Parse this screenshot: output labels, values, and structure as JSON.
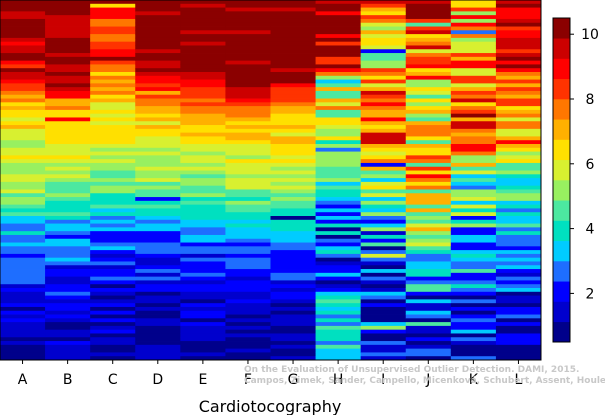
{
  "chart_data": {
    "type": "heatmap",
    "xlabel": "Cardiotocography",
    "categories": [
      "A",
      "B",
      "C",
      "D",
      "E",
      "F",
      "G",
      "H",
      "I",
      "J",
      "K",
      "L"
    ],
    "colorbar": {
      "min": 0.5,
      "max": 10.5,
      "ticks": [
        2,
        4,
        6,
        8,
        10
      ]
    },
    "colors": [
      "#00008B",
      "#0000CD",
      "#0000FF",
      "#1E6EFF",
      "#00CCFF",
      "#00E0C0",
      "#4CE8A0",
      "#98F060",
      "#D8F030",
      "#FFE000",
      "#FFB000",
      "#FF7700",
      "#FF3300",
      "#FF0000",
      "#CC0000",
      "#8B0000"
    ],
    "columns": [
      {
        "name": "A",
        "profile": [
          [
            0.0,
            10.3
          ],
          [
            0.2,
            9.8
          ],
          [
            0.27,
            7.2
          ],
          [
            0.4,
            6.0
          ],
          [
            0.55,
            5.2
          ],
          [
            0.62,
            3.3
          ],
          [
            0.75,
            2.6
          ],
          [
            0.85,
            1.7
          ],
          [
            1.0,
            0.9
          ]
        ],
        "noise": 0.7,
        "seed": 11
      },
      {
        "name": "B",
        "profile": [
          [
            0.0,
            10.3
          ],
          [
            0.25,
            9.8
          ],
          [
            0.28,
            7.5
          ],
          [
            0.4,
            6.2
          ],
          [
            0.55,
            5.0
          ],
          [
            0.62,
            3.2
          ],
          [
            0.75,
            2.3
          ],
          [
            0.88,
            1.5
          ],
          [
            1.0,
            0.9
          ]
        ],
        "noise": 0.7,
        "seed": 23
      },
      {
        "name": "C",
        "profile": [
          [
            0.0,
            10.3
          ],
          [
            0.05,
            8.0
          ],
          [
            0.2,
            8.0
          ],
          [
            0.28,
            6.3
          ],
          [
            0.4,
            5.6
          ],
          [
            0.55,
            4.4
          ],
          [
            0.62,
            2.8
          ],
          [
            0.75,
            2.0
          ],
          [
            0.9,
            1.3
          ],
          [
            1.0,
            0.9
          ]
        ],
        "noise": 0.7,
        "seed": 37
      },
      {
        "name": "D",
        "profile": [
          [
            0.0,
            10.3
          ],
          [
            0.15,
            10.3
          ],
          [
            0.25,
            8.2
          ],
          [
            0.32,
            6.7
          ],
          [
            0.45,
            5.6
          ],
          [
            0.55,
            4.7
          ],
          [
            0.62,
            3.0
          ],
          [
            0.75,
            2.0
          ],
          [
            0.85,
            1.4
          ],
          [
            1.0,
            0.9
          ]
        ],
        "noise": 0.6,
        "seed": 41
      },
      {
        "name": "E",
        "profile": [
          [
            0.0,
            10.3
          ],
          [
            0.18,
            10.3
          ],
          [
            0.26,
            8.6
          ],
          [
            0.34,
            6.8
          ],
          [
            0.45,
            5.6
          ],
          [
            0.55,
            4.6
          ],
          [
            0.62,
            3.2
          ],
          [
            0.72,
            2.2
          ],
          [
            0.85,
            1.5
          ],
          [
            1.0,
            0.9
          ]
        ],
        "noise": 0.6,
        "seed": 53
      },
      {
        "name": "F",
        "profile": [
          [
            0.0,
            10.3
          ],
          [
            0.24,
            10.3
          ],
          [
            0.28,
            8.4
          ],
          [
            0.34,
            7.0
          ],
          [
            0.45,
            5.8
          ],
          [
            0.55,
            4.8
          ],
          [
            0.62,
            3.4
          ],
          [
            0.72,
            2.4
          ],
          [
            0.85,
            1.4
          ],
          [
            1.0,
            0.9
          ]
        ],
        "noise": 0.6,
        "seed": 61
      },
      {
        "name": "G",
        "profile": [
          [
            0.0,
            10.3
          ],
          [
            0.22,
            10.3
          ],
          [
            0.28,
            7.5
          ],
          [
            0.35,
            6.8
          ],
          [
            0.45,
            5.9
          ],
          [
            0.55,
            4.9
          ],
          [
            0.62,
            3.8
          ],
          [
            0.72,
            2.5
          ],
          [
            0.85,
            1.5
          ],
          [
            1.0,
            0.9
          ]
        ],
        "noise": 0.6,
        "seed": 73
      },
      {
        "name": "H",
        "profile": [
          [
            0.0,
            10.3
          ],
          [
            0.15,
            10.3
          ],
          [
            0.22,
            6.5
          ],
          [
            0.35,
            5.0
          ],
          [
            0.45,
            4.3
          ],
          [
            0.55,
            3.8
          ],
          [
            0.65,
            2.5
          ],
          [
            0.8,
            2.0
          ],
          [
            0.88,
            4.0
          ],
          [
            1.0,
            3.5
          ]
        ],
        "noise": 1.8,
        "seed": 83
      },
      {
        "name": "I",
        "profile": [
          [
            0.0,
            10.3
          ],
          [
            0.05,
            6.5
          ],
          [
            0.2,
            6.5
          ],
          [
            0.3,
            9.0
          ],
          [
            0.4,
            8.0
          ],
          [
            0.48,
            5.0
          ],
          [
            0.6,
            4.0
          ],
          [
            0.7,
            2.2
          ],
          [
            0.85,
            1.5
          ],
          [
            1.0,
            1.0
          ]
        ],
        "noise": 2.0,
        "seed": 97
      },
      {
        "name": "J",
        "profile": [
          [
            0.0,
            10.3
          ],
          [
            0.05,
            8.0
          ],
          [
            0.2,
            7.5
          ],
          [
            0.35,
            6.0
          ],
          [
            0.5,
            7.0
          ],
          [
            0.62,
            5.5
          ],
          [
            0.72,
            3.8
          ],
          [
            0.85,
            2.2
          ],
          [
            1.0,
            1.0
          ]
        ],
        "noise": 2.0,
        "seed": 101
      },
      {
        "name": "K",
        "profile": [
          [
            0.0,
            7.5
          ],
          [
            0.1,
            6.5
          ],
          [
            0.25,
            8.0
          ],
          [
            0.35,
            9.0
          ],
          [
            0.5,
            5.0
          ],
          [
            0.62,
            4.0
          ],
          [
            0.72,
            3.0
          ],
          [
            0.85,
            1.8
          ],
          [
            1.0,
            1.0
          ]
        ],
        "noise": 2.0,
        "seed": 113
      },
      {
        "name": "L",
        "profile": [
          [
            0.0,
            10.3
          ],
          [
            0.15,
            9.5
          ],
          [
            0.25,
            8.0
          ],
          [
            0.35,
            6.3
          ],
          [
            0.45,
            5.5
          ],
          [
            0.55,
            3.8
          ],
          [
            0.7,
            2.8
          ],
          [
            0.8,
            2.2
          ],
          [
            0.9,
            1.2
          ],
          [
            1.0,
            0.9
          ]
        ],
        "noise": 1.4,
        "seed": 127
      }
    ],
    "rows": 95
  },
  "credit": {
    "line1": "On the Evaluation of Unsupervised Outlier Detection. DAMI, 2015.",
    "line2": "Campos, Zimek, Sander, Campello, Micenková, Schubert, Assent, Houle"
  }
}
